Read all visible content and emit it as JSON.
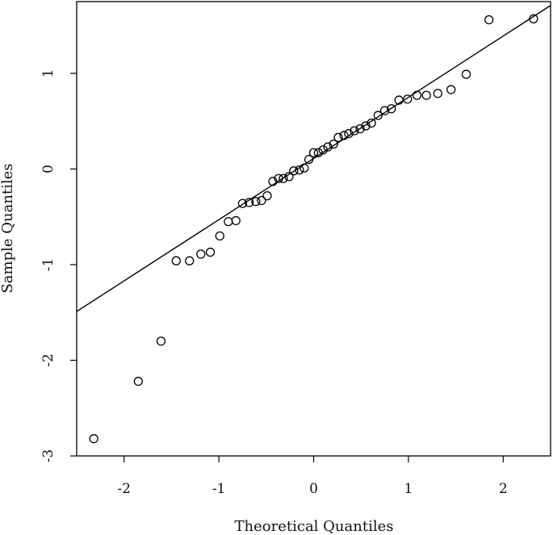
{
  "chart_data": {
    "type": "scatter",
    "title": "",
    "xlabel": "Theoretical Quantiles",
    "ylabel": "Sample Quantiles",
    "xlim": [
      -2.5,
      2.5
    ],
    "ylim": [
      -3.0,
      1.75
    ],
    "xticks": [
      -2,
      -1,
      0,
      1,
      2
    ],
    "yticks": [
      -3,
      -2,
      -1,
      0,
      1
    ],
    "xtick_labels": [
      "-2",
      "-1",
      "0",
      "1",
      "2"
    ],
    "ytick_labels": [
      "-3",
      "-2",
      "-1",
      "0",
      "1"
    ],
    "grid": false,
    "marker": "open-circle",
    "points": {
      "x": [
        -2.32,
        -1.85,
        -1.61,
        -1.45,
        -1.31,
        -1.19,
        -1.09,
        -0.99,
        -0.9,
        -0.82,
        -0.75,
        -0.68,
        -0.61,
        -0.55,
        -0.49,
        -0.43,
        -0.37,
        -0.32,
        -0.26,
        -0.21,
        -0.15,
        -0.1,
        -0.05,
        0.0,
        0.05,
        0.1,
        0.15,
        0.21,
        0.26,
        0.32,
        0.37,
        0.43,
        0.49,
        0.55,
        0.61,
        0.68,
        0.75,
        0.82,
        0.9,
        0.99,
        1.09,
        1.19,
        1.31,
        1.45,
        1.61,
        1.85,
        2.32
      ],
      "y": [
        -2.82,
        -2.22,
        -1.8,
        -0.96,
        -0.96,
        -0.89,
        -0.87,
        -0.7,
        -0.55,
        -0.54,
        -0.36,
        -0.35,
        -0.34,
        -0.33,
        -0.28,
        -0.13,
        -0.1,
        -0.1,
        -0.08,
        -0.02,
        -0.01,
        0.01,
        0.1,
        0.17,
        0.17,
        0.2,
        0.23,
        0.26,
        0.33,
        0.35,
        0.37,
        0.4,
        0.42,
        0.45,
        0.48,
        0.56,
        0.61,
        0.63,
        0.72,
        0.73,
        0.77,
        0.77,
        0.79,
        0.83,
        0.99,
        1.56,
        1.57
      ]
    },
    "reference_line": {
      "slope": 0.64,
      "intercept": 0.11
    }
  }
}
